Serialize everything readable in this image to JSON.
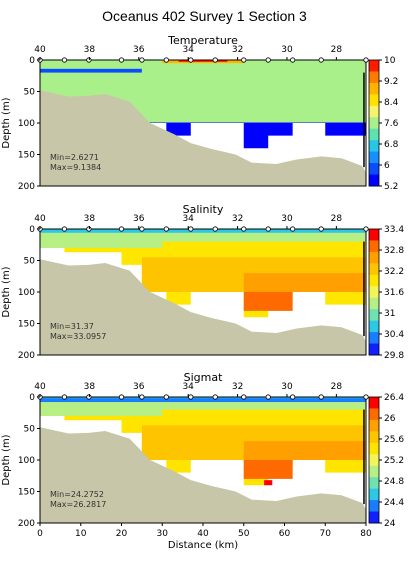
{
  "title": "Oceanus 402 Survey 1 Section 3",
  "colors": {
    "seafloor": "#c7c6a8",
    "no_data": "#ffffff"
  },
  "chart_data": [
    {
      "type": "heatmap",
      "title": "Temperature",
      "ylabel": "Depth (m)",
      "xlabel": "",
      "top_ticks": [
        "40",
        "38",
        "36",
        "34",
        "32",
        "30",
        "28"
      ],
      "x_ticks": [],
      "y_ticks": [
        "0",
        "50",
        "100",
        "150",
        "200"
      ],
      "xlim": [
        0,
        80
      ],
      "ylim": [
        200,
        0
      ],
      "stats": {
        "min": "Min=2.6271",
        "max": "Max=9.1384"
      },
      "colorbar": {
        "ticks": [
          "10",
          "9.2",
          "8.4",
          "7.6",
          "6.8",
          "6",
          "5.2"
        ],
        "range": [
          5.2,
          10
        ]
      }
    },
    {
      "type": "heatmap",
      "title": "Salinity",
      "ylabel": "Depth (m)",
      "xlabel": "",
      "top_ticks": [
        "40",
        "38",
        "36",
        "34",
        "32",
        "30",
        "28"
      ],
      "x_ticks": [],
      "y_ticks": [
        "0",
        "50",
        "100",
        "150",
        "200"
      ],
      "xlim": [
        0,
        80
      ],
      "ylim": [
        200,
        0
      ],
      "stats": {
        "min": "Min=31.37",
        "max": "Max=33.0957"
      },
      "colorbar": {
        "ticks": [
          "33.4",
          "32.8",
          "32.2",
          "31.6",
          "31",
          "30.4",
          "29.8"
        ],
        "range": [
          29.8,
          33.4
        ]
      }
    },
    {
      "type": "heatmap",
      "title": "Sigmat",
      "ylabel": "Depth (m)",
      "xlabel": "Distance (km)",
      "top_ticks": [
        "40",
        "38",
        "36",
        "34",
        "32",
        "30",
        "28"
      ],
      "x_ticks": [
        "0",
        "10",
        "20",
        "30",
        "40",
        "50",
        "60",
        "70",
        "80"
      ],
      "y_ticks": [
        "0",
        "50",
        "100",
        "150",
        "200"
      ],
      "xlim": [
        0,
        80
      ],
      "ylim": [
        200,
        0
      ],
      "stats": {
        "min": "Min=24.2752",
        "max": "Max=26.2817"
      },
      "colorbar": {
        "ticks": [
          "26.4",
          "26",
          "25.6",
          "25.2",
          "24.8",
          "24.4",
          "24"
        ],
        "range": [
          24,
          26.4
        ]
      }
    }
  ]
}
